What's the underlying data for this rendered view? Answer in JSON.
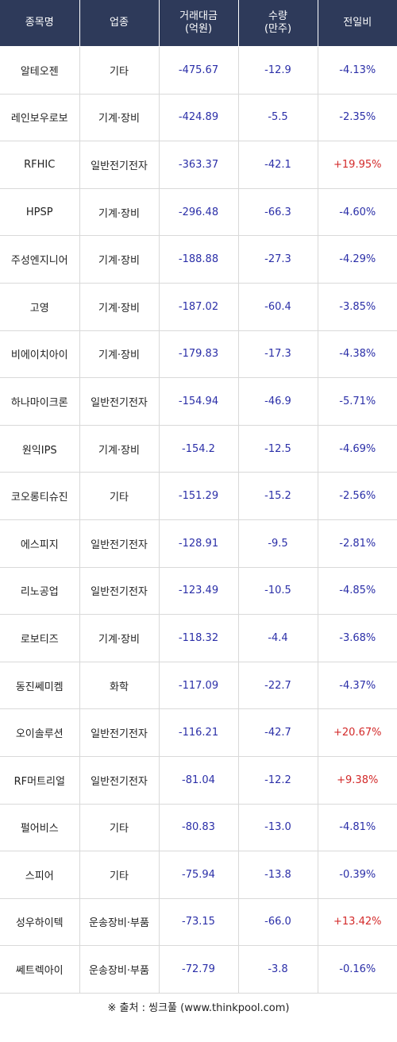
{
  "header": {
    "name": "종목명",
    "sector": "업종",
    "amount_line1": "거래대금",
    "amount_line2": "(억원)",
    "volume_line1": "수량",
    "volume_line2": "(만주)",
    "change": "전일비"
  },
  "colors": {
    "header_bg": "#2e3a5a",
    "negative": "#2b2fa8",
    "positive": "#d32a2a"
  },
  "rows": [
    {
      "name": "알테오젠",
      "sector": "기타",
      "amount": "-475.67",
      "volume": "-12.9",
      "change": "-4.13%"
    },
    {
      "name": "레인보우로보",
      "sector": "기계·장비",
      "amount": "-424.89",
      "volume": "-5.5",
      "change": "-2.35%"
    },
    {
      "name": "RFHIC",
      "sector": "일반전기전자",
      "amount": "-363.37",
      "volume": "-42.1",
      "change": "+19.95%"
    },
    {
      "name": "HPSP",
      "sector": "기계·장비",
      "amount": "-296.48",
      "volume": "-66.3",
      "change": "-4.60%"
    },
    {
      "name": "주성엔지니어",
      "sector": "기계·장비",
      "amount": "-188.88",
      "volume": "-27.3",
      "change": "-4.29%"
    },
    {
      "name": "고영",
      "sector": "기계·장비",
      "amount": "-187.02",
      "volume": "-60.4",
      "change": "-3.85%"
    },
    {
      "name": "비에이치아이",
      "sector": "기계·장비",
      "amount": "-179.83",
      "volume": "-17.3",
      "change": "-4.38%"
    },
    {
      "name": "하나마이크론",
      "sector": "일반전기전자",
      "amount": "-154.94",
      "volume": "-46.9",
      "change": "-5.71%"
    },
    {
      "name": "원익IPS",
      "sector": "기계·장비",
      "amount": "-154.2",
      "volume": "-12.5",
      "change": "-4.69%"
    },
    {
      "name": "코오롱티슈진",
      "sector": "기타",
      "amount": "-151.29",
      "volume": "-15.2",
      "change": "-2.56%"
    },
    {
      "name": "에스피지",
      "sector": "일반전기전자",
      "amount": "-128.91",
      "volume": "-9.5",
      "change": "-2.81%"
    },
    {
      "name": "리노공업",
      "sector": "일반전기전자",
      "amount": "-123.49",
      "volume": "-10.5",
      "change": "-4.85%"
    },
    {
      "name": "로보티즈",
      "sector": "기계·장비",
      "amount": "-118.32",
      "volume": "-4.4",
      "change": "-3.68%"
    },
    {
      "name": "동진쎄미켐",
      "sector": "화학",
      "amount": "-117.09",
      "volume": "-22.7",
      "change": "-4.37%"
    },
    {
      "name": "오이솔루션",
      "sector": "일반전기전자",
      "amount": "-116.21",
      "volume": "-42.7",
      "change": "+20.67%"
    },
    {
      "name": "RF머트리얼",
      "sector": "일반전기전자",
      "amount": "-81.04",
      "volume": "-12.2",
      "change": "+9.38%"
    },
    {
      "name": "펄어비스",
      "sector": "기타",
      "amount": "-80.83",
      "volume": "-13.0",
      "change": "-4.81%"
    },
    {
      "name": "스피어",
      "sector": "기타",
      "amount": "-75.94",
      "volume": "-13.8",
      "change": "-0.39%"
    },
    {
      "name": "성우하이텍",
      "sector": "운송장비·부품",
      "amount": "-73.15",
      "volume": "-66.0",
      "change": "+13.42%"
    },
    {
      "name": "쎄트렉아이",
      "sector": "운송장비·부품",
      "amount": "-72.79",
      "volume": "-3.8",
      "change": "-0.16%"
    }
  ],
  "footer": {
    "source": "※ 출처 : 씽크풀 (www.thinkpool.com)"
  }
}
